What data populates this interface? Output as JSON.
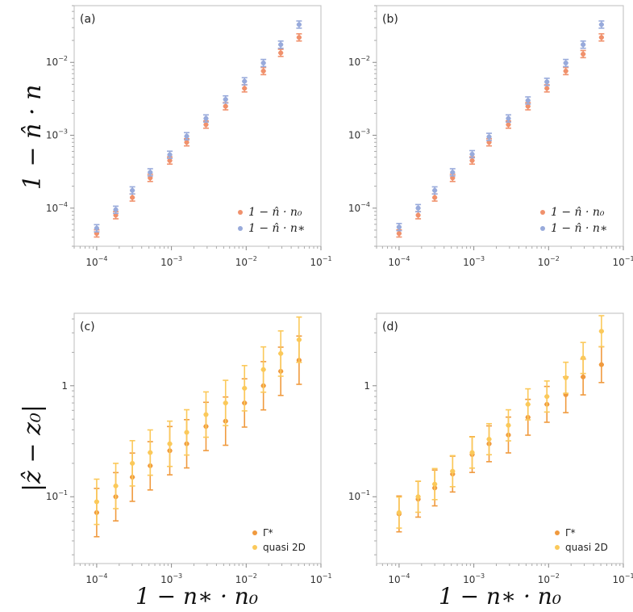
{
  "figure": {
    "ylabel_top": "1 − n̂ · n",
    "ylabel_bottom": "|ẑ − z₀|",
    "xlabel": "1 − n∗ · n₀"
  },
  "chart_data": [
    {
      "panel": "(a)",
      "type": "scatter",
      "xscale": "log",
      "yscale": "log",
      "xlim": [
        5e-05,
        0.1
      ],
      "ylim": [
        3e-05,
        0.06
      ],
      "xticks": [
        "10^-4",
        "10^-3",
        "10^-2",
        "10^-1"
      ],
      "yticks": [
        "10^-4",
        "10^-3",
        "10^-2"
      ],
      "legend_position": "bottom-right",
      "x": [
        0.0001,
        0.00018,
        0.0003,
        0.00052,
        0.00095,
        0.0016,
        0.0029,
        0.0053,
        0.0095,
        0.017,
        0.029,
        0.051
      ],
      "series": [
        {
          "name": "1 − n̂ · n₀",
          "color": "#f0916c",
          "y": [
            4.5e-05,
            8e-05,
            0.00014,
            0.00026,
            0.00045,
            0.0008,
            0.0014,
            0.0025,
            0.0044,
            0.0076,
            0.0135,
            0.022
          ],
          "err_factor": 1.12
        },
        {
          "name": "1 − n̂ · n∗",
          "color": "#98aadb",
          "y": [
            5.3e-05,
            9.5e-05,
            0.000175,
            0.00031,
            0.00054,
            0.00097,
            0.0017,
            0.0031,
            0.0055,
            0.0098,
            0.0175,
            0.033
          ],
          "err_factor": 1.12
        }
      ]
    },
    {
      "panel": "(b)",
      "type": "scatter",
      "xscale": "log",
      "yscale": "log",
      "xlim": [
        5e-05,
        0.1
      ],
      "ylim": [
        3e-05,
        0.06
      ],
      "xticks": [
        "10^-4",
        "10^-3",
        "10^-2",
        "10^-1"
      ],
      "yticks": [
        "10^-4",
        "10^-3",
        "10^-2"
      ],
      "legend_position": "bottom-right",
      "x": [
        0.0001,
        0.00018,
        0.0003,
        0.00052,
        0.00095,
        0.0016,
        0.0029,
        0.0053,
        0.0095,
        0.017,
        0.029,
        0.051
      ],
      "series": [
        {
          "name": "1 − n̂ · n₀",
          "color": "#f0916c",
          "y": [
            4.5e-05,
            8e-05,
            0.00014,
            0.00026,
            0.00045,
            0.0008,
            0.0014,
            0.0025,
            0.0044,
            0.0076,
            0.013,
            0.022
          ],
          "err_factor": 1.12
        },
        {
          "name": "1 − n̂ · n∗",
          "color": "#98aadb",
          "y": [
            5.5e-05,
            0.0001,
            0.000175,
            0.00031,
            0.00055,
            0.00095,
            0.0017,
            0.003,
            0.0054,
            0.0098,
            0.0175,
            0.033
          ],
          "err_factor": 1.12
        }
      ]
    },
    {
      "panel": "(c)",
      "type": "scatter",
      "xscale": "log",
      "yscale": "log",
      "xlim": [
        5e-05,
        0.1
      ],
      "ylim": [
        0.025,
        4.5
      ],
      "xticks": [
        "10^-4",
        "10^-3",
        "10^-2",
        "10^-1"
      ],
      "yticks": [
        "10^-1",
        "1"
      ],
      "legend_position": "bottom-right",
      "x": [
        0.0001,
        0.00018,
        0.0003,
        0.00052,
        0.00095,
        0.0016,
        0.0029,
        0.0053,
        0.0095,
        0.017,
        0.029,
        0.051
      ],
      "series": [
        {
          "name": "Γ*",
          "color": "#f09a3e",
          "y": [
            0.072,
            0.1,
            0.15,
            0.19,
            0.26,
            0.3,
            0.43,
            0.48,
            0.7,
            1.0,
            1.35,
            1.7
          ],
          "err_factor": 1.65
        },
        {
          "name": "quasi 2D",
          "color": "#fbc95a",
          "y": [
            0.09,
            0.125,
            0.2,
            0.25,
            0.3,
            0.38,
            0.55,
            0.7,
            0.95,
            1.4,
            1.95,
            2.6
          ],
          "err_factor": 1.6
        }
      ]
    },
    {
      "panel": "(d)",
      "type": "scatter",
      "xscale": "log",
      "yscale": "log",
      "xlim": [
        5e-05,
        0.1
      ],
      "ylim": [
        0.025,
        4.5
      ],
      "xticks": [
        "10^-4",
        "10^-3",
        "10^-2",
        "10^-1"
      ],
      "yticks": [
        "10^-1",
        "1"
      ],
      "legend_position": "bottom-right",
      "x": [
        0.0001,
        0.00018,
        0.0003,
        0.00052,
        0.00095,
        0.0016,
        0.0029,
        0.0053,
        0.0095,
        0.017,
        0.029,
        0.051
      ],
      "series": [
        {
          "name": "Γ*",
          "color": "#f09a3e",
          "y": [
            0.07,
            0.095,
            0.12,
            0.16,
            0.24,
            0.3,
            0.36,
            0.52,
            0.68,
            0.83,
            1.2,
            1.55
          ],
          "err_factor": 1.45
        },
        {
          "name": "quasi 2D",
          "color": "#fbc95a",
          "y": [
            0.072,
            0.1,
            0.13,
            0.17,
            0.25,
            0.33,
            0.44,
            0.68,
            0.8,
            1.18,
            1.78,
            3.1
          ],
          "err_factor": 1.38
        }
      ]
    }
  ]
}
